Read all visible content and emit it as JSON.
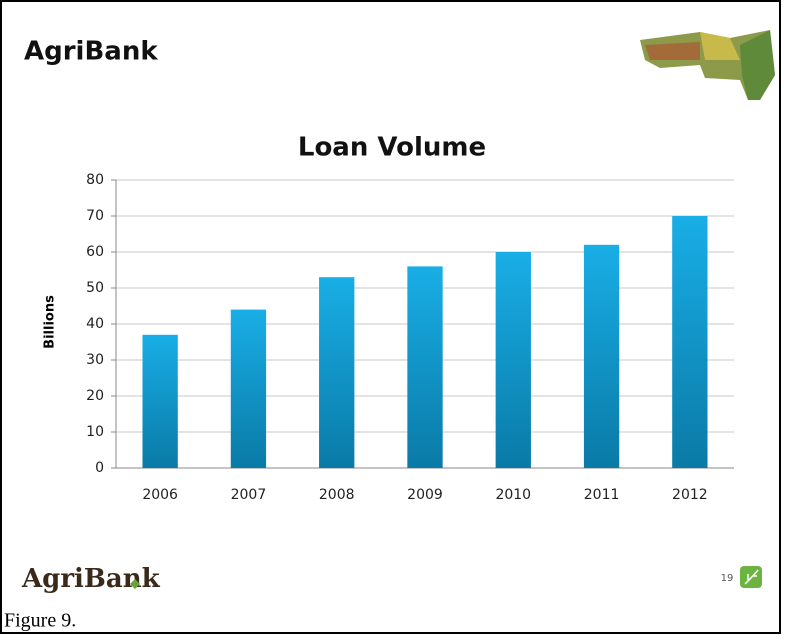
{
  "header": {
    "title": "AgriBank"
  },
  "chart_data": {
    "type": "bar",
    "title": "Loan Volume",
    "y_label": "Billions",
    "categories": [
      "2006",
      "2007",
      "2008",
      "2009",
      "2010",
      "2011",
      "2012"
    ],
    "values": [
      37,
      44,
      53,
      56,
      60,
      62,
      70
    ],
    "color": "#19aee6",
    "ylim": [
      0,
      80
    ],
    "yticks": [
      0,
      10,
      20,
      30,
      40,
      50,
      60,
      70,
      80
    ],
    "grid": true
  },
  "footer": {
    "logo": "AgriBank",
    "page": "19"
  },
  "caption": "Figure 9."
}
